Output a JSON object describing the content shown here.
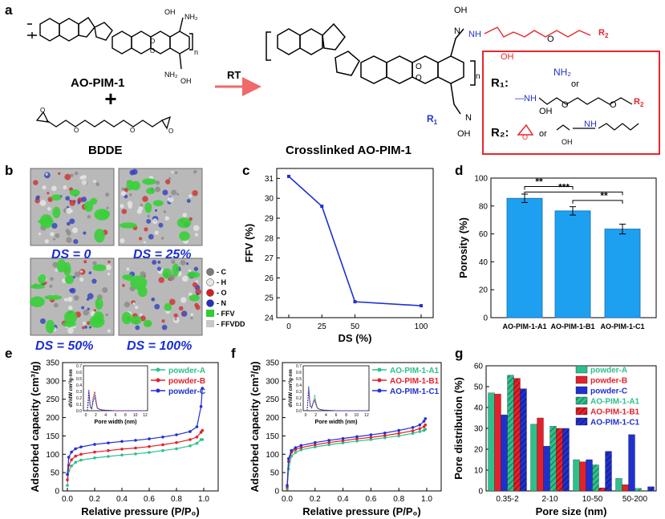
{
  "panel_labels": {
    "a": "a",
    "b": "b",
    "c": "c",
    "d": "d",
    "e": "e",
    "f": "f",
    "g": "g"
  },
  "scheme": {
    "reactant1": "AO-PIM-1",
    "plus": "+",
    "reactant2": "BDDE",
    "arrow": "RT",
    "product": "Crosslinked AO-PIM-1",
    "n": "n",
    "oh": "OH",
    "nh2": "NH₂",
    "nh": "NH",
    "r1": "R",
    "r2": "R",
    "r1_label": "R₁:",
    "r2_label": "R₂:",
    "or": "or",
    "colors": {
      "frame": "#e8262b",
      "arrow": "#f06a6a",
      "r_group": "#2532cc",
      "linker": "#e8262b"
    }
  },
  "panel_b": {
    "labels": [
      "DS = 0",
      "DS = 25%",
      "DS = 50%",
      "DS = 100%"
    ],
    "legend": [
      "- C",
      "- H",
      "- O",
      "- N",
      "- FFV",
      "- FFVDD"
    ],
    "legend_colors": [
      "#7a7a7a",
      "#e6e6e6",
      "#d62020",
      "#2030c0",
      "#33cc33",
      "#c8c8c8"
    ]
  },
  "chart_data": [
    {
      "panel": "c",
      "type": "line",
      "x": [
        0,
        25,
        50,
        100
      ],
      "categories": [
        "0",
        "25",
        "50",
        "100"
      ],
      "values": [
        31.1,
        29.6,
        24.8,
        24.6
      ],
      "xlabel": "DS (%)",
      "ylabel": "FFV (%)",
      "ylim": [
        24,
        31.5
      ],
      "yticks": [
        "24",
        "25",
        "26",
        "27",
        "28",
        "29",
        "30",
        "31"
      ],
      "color": "#1f2fd0"
    },
    {
      "panel": "d",
      "type": "bar",
      "categories": [
        "AO-PIM-1-A1",
        "AO-PIM-1-B1",
        "AO-PIM-1-C1"
      ],
      "values": [
        85.5,
        76.5,
        63.5
      ],
      "errors": [
        3,
        3,
        3.5
      ],
      "xlabel": "",
      "ylabel": "Porosity (%)",
      "ylim": [
        0,
        100
      ],
      "yticks": [
        "0",
        "20",
        "40",
        "60",
        "80",
        "100"
      ],
      "significance": [
        "**",
        "***",
        "**"
      ],
      "color": "#1ea0f0"
    },
    {
      "panel": "e",
      "type": "line",
      "xlabel": "Relative pressure (P/P₀)",
      "ylabel": "Adsorbed capacity (cm³/g)",
      "ylim": [
        0,
        350
      ],
      "xlim": [
        0,
        1
      ],
      "yticks": [
        "0",
        "50",
        "100",
        "150",
        "200",
        "250",
        "300",
        "350"
      ],
      "xticks": [
        "0.0",
        "0.2",
        "0.4",
        "0.6",
        "0.8",
        "1.0"
      ],
      "legend": "top-right",
      "series": [
        {
          "name": "powder-A",
          "color": "#2ec08c",
          "x": [
            0.0,
            0.01,
            0.03,
            0.06,
            0.1,
            0.2,
            0.3,
            0.4,
            0.5,
            0.6,
            0.7,
            0.8,
            0.9,
            0.95,
            0.98,
            0.99
          ],
          "y": [
            15,
            55,
            68,
            78,
            84,
            90,
            94,
            98,
            101,
            105,
            110,
            115,
            123,
            130,
            140,
            140
          ]
        },
        {
          "name": "powder-B",
          "color": "#e5202a",
          "x": [
            0.0,
            0.01,
            0.03,
            0.06,
            0.1,
            0.2,
            0.3,
            0.4,
            0.5,
            0.6,
            0.7,
            0.8,
            0.9,
            0.95,
            0.98,
            0.99
          ],
          "y": [
            30,
            70,
            85,
            95,
            100,
            106,
            110,
            114,
            117,
            121,
            126,
            132,
            140,
            147,
            160,
            165
          ]
        },
        {
          "name": "powder-C",
          "color": "#2030d0",
          "x": [
            0.0,
            0.01,
            0.03,
            0.06,
            0.1,
            0.2,
            0.3,
            0.4,
            0.5,
            0.6,
            0.7,
            0.8,
            0.9,
            0.95,
            0.98,
            0.99
          ],
          "y": [
            45,
            92,
            106,
            115,
            120,
            127,
            131,
            135,
            138,
            142,
            147,
            153,
            162,
            175,
            230,
            280
          ]
        }
      ],
      "inset": {
        "xlabel": "Pore width (nm)",
        "ylabel": "dV/dW cm³/g·nm",
        "xticks": [
          "0",
          "2",
          "4",
          "6",
          "8",
          "10",
          "12"
        ],
        "yticks": [
          "0.0",
          "0.1",
          "0.2",
          "0.3",
          "0.4",
          "0.5",
          "0.6",
          "0.7"
        ],
        "xlim": [
          0,
          12
        ],
        "ylim": [
          0,
          0.7
        ],
        "series": [
          {
            "color": "#2ec08c",
            "x": [
              0.3,
              0.5,
              0.6,
              0.7,
              0.9,
              1.2,
              1.5,
              1.8,
              2.0,
              2.3,
              2.8,
              3.5,
              6,
              12
            ],
            "y": [
              0,
              0.1,
              0.25,
              0.2,
              0.05,
              0.03,
              0.2,
              0.27,
              0.18,
              0.05,
              0.02,
              0.01,
              0,
              0
            ]
          },
          {
            "color": "#e5202a",
            "x": [
              0.3,
              0.5,
              0.6,
              0.7,
              0.9,
              1.2,
              1.5,
              1.8,
              2.0,
              2.3,
              2.8,
              3.5,
              6,
              12
            ],
            "y": [
              0,
              0.15,
              0.3,
              0.22,
              0.06,
              0.03,
              0.22,
              0.3,
              0.2,
              0.05,
              0.02,
              0.01,
              0,
              0
            ]
          },
          {
            "color": "#2030d0",
            "x": [
              0.3,
              0.5,
              0.6,
              0.7,
              0.9,
              1.2,
              1.5,
              1.8,
              2.0,
              2.3,
              2.8,
              3.5,
              6,
              12
            ],
            "y": [
              0,
              0.2,
              0.33,
              0.25,
              0.06,
              0.03,
              0.15,
              0.22,
              0.14,
              0.04,
              0.02,
              0.01,
              0,
              0
            ]
          }
        ]
      }
    },
    {
      "panel": "f",
      "type": "line",
      "xlabel": "Relative pressure (P/P₀)",
      "ylabel": "Adsorbed capacity (cm³/g)",
      "ylim": [
        0,
        350
      ],
      "xlim": [
        0,
        1
      ],
      "yticks": [
        "0",
        "50",
        "100",
        "150",
        "200",
        "250",
        "300",
        "350"
      ],
      "xticks": [
        "0.0",
        "0.2",
        "0.4",
        "0.6",
        "0.8",
        "1.0"
      ],
      "legend": "top-right",
      "series": [
        {
          "name": "AO-PIM-1-A1",
          "color": "#2ec08c",
          "x": [
            0.0,
            0.01,
            0.03,
            0.06,
            0.1,
            0.2,
            0.3,
            0.4,
            0.5,
            0.6,
            0.7,
            0.8,
            0.9,
            0.95,
            0.98,
            0.99
          ],
          "y": [
            5,
            60,
            95,
            105,
            112,
            120,
            126,
            131,
            136,
            140,
            145,
            150,
            157,
            162,
            165,
            168
          ]
        },
        {
          "name": "AO-PIM-1-B1",
          "color": "#e5202a",
          "x": [
            0.0,
            0.01,
            0.03,
            0.06,
            0.1,
            0.2,
            0.3,
            0.4,
            0.5,
            0.6,
            0.7,
            0.8,
            0.9,
            0.95,
            0.98,
            0.99
          ],
          "y": [
            10,
            80,
            105,
            113,
            118,
            126,
            132,
            137,
            142,
            146,
            151,
            157,
            164,
            170,
            175,
            180
          ]
        },
        {
          "name": "AO-PIM-1-C1",
          "color": "#2030d0",
          "x": [
            0.0,
            0.01,
            0.03,
            0.06,
            0.1,
            0.2,
            0.3,
            0.4,
            0.5,
            0.6,
            0.7,
            0.8,
            0.9,
            0.95,
            0.98,
            0.99
          ],
          "y": [
            15,
            88,
            110,
            118,
            124,
            132,
            138,
            143,
            148,
            153,
            158,
            165,
            173,
            180,
            190,
            197
          ]
        }
      ],
      "inset": {
        "xlabel": "Pore width (nm)",
        "ylabel": "dV/dW cm³/g·nm",
        "xticks": [
          "0",
          "2",
          "4",
          "6",
          "8",
          "10",
          "12"
        ],
        "yticks": [
          "0.0",
          "0.1",
          "0.2",
          "0.3",
          "0.4",
          "0.5",
          "0.6",
          "0.7"
        ],
        "xlim": [
          0,
          12
        ],
        "ylim": [
          0,
          0.7
        ],
        "series": [
          {
            "color": "#2ec08c",
            "x": [
              0.3,
              0.5,
              0.6,
              0.7,
              0.9,
              1.2,
              1.5,
              1.8,
              2.0,
              2.3,
              2.8,
              3.5,
              6,
              12
            ],
            "y": [
              0,
              0.22,
              0.35,
              0.25,
              0.08,
              0.05,
              0.15,
              0.25,
              0.15,
              0.05,
              0.02,
              0.01,
              0,
              0
            ]
          },
          {
            "color": "#e5202a",
            "x": [
              0.3,
              0.5,
              0.6,
              0.7,
              0.9,
              1.2,
              1.5,
              1.8,
              2.0,
              2.3,
              2.8,
              3.5,
              6,
              12
            ],
            "y": [
              0,
              0.2,
              0.32,
              0.22,
              0.07,
              0.04,
              0.13,
              0.18,
              0.12,
              0.04,
              0.02,
              0.01,
              0,
              0
            ]
          },
          {
            "color": "#2030d0",
            "x": [
              0.3,
              0.5,
              0.6,
              0.7,
              0.9,
              1.2,
              1.5,
              1.8,
              2.0,
              2.3,
              2.8,
              3.5,
              6,
              12
            ],
            "y": [
              0,
              0.25,
              0.38,
              0.28,
              0.08,
              0.05,
              0.12,
              0.16,
              0.1,
              0.04,
              0.02,
              0.01,
              0,
              0
            ]
          }
        ]
      }
    },
    {
      "panel": "g",
      "type": "bar",
      "categories": [
        "0.35-2",
        "2-10",
        "10-50",
        "50-200"
      ],
      "xlabel": "Pore size (nm)",
      "ylabel": "Pore distribution (%)",
      "ylim": [
        0,
        60
      ],
      "yticks": [
        "0",
        "10",
        "20",
        "30",
        "40",
        "50",
        "60"
      ],
      "legend": "top-right",
      "series": [
        {
          "name": "powder-A",
          "color": "#2ec08c",
          "hatch": false,
          "values": [
            47,
            32,
            15,
            6
          ]
        },
        {
          "name": "powder-B",
          "color": "#e5202a",
          "hatch": false,
          "values": [
            46.5,
            35,
            14,
            3
          ]
        },
        {
          "name": "powder-C",
          "color": "#2030d0",
          "hatch": false,
          "values": [
            36.5,
            21.5,
            15,
            27
          ]
        },
        {
          "name": "AO-PIM-1-A1",
          "color": "#2ec08c",
          "hatch": true,
          "values": [
            55.5,
            31,
            12.5,
            1.2
          ]
        },
        {
          "name": "AO-PIM-1-B1",
          "color": "#e5202a",
          "hatch": true,
          "values": [
            54,
            30,
            1.5,
            0
          ]
        },
        {
          "name": "AO-PIM-1-C1",
          "color": "#2030d0",
          "hatch": true,
          "values": [
            49,
            30,
            19,
            2
          ]
        }
      ]
    }
  ]
}
